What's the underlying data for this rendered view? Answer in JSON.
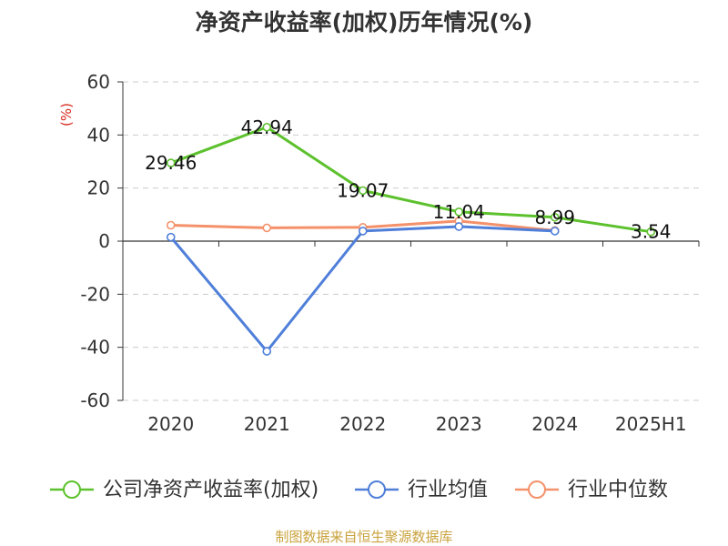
{
  "chart_data": {
    "type": "line",
    "title": "净资产收益率(加权)历年情况(%)",
    "ylabel": "(%)",
    "xlabel": "",
    "categories": [
      "2020",
      "2021",
      "2022",
      "2023",
      "2024",
      "2025H1"
    ],
    "ylim": [
      -60,
      60
    ],
    "yticks": [
      60,
      40,
      20,
      0,
      -20,
      -40,
      -60
    ],
    "grid": true,
    "legend_position": "bottom",
    "series": [
      {
        "name": "公司净资产收益率(加权)",
        "color": "#5cc12d",
        "values": [
          29.46,
          42.94,
          19.07,
          11.04,
          8.99,
          3.54
        ],
        "labels": [
          "29.46",
          "42.94",
          "19.07",
          "11.04",
          "8.99",
          "3.54"
        ]
      },
      {
        "name": "行业均值",
        "color": "#4f7fd9",
        "values": [
          1.5,
          -41.5,
          3.8,
          5.5,
          3.8,
          null
        ]
      },
      {
        "name": "行业中位数",
        "color": "#f4916a",
        "values": [
          6.0,
          5.0,
          5.2,
          7.6,
          4.0,
          null
        ]
      }
    ]
  },
  "source": "制图数据来自恒生聚源数据库",
  "colors": {
    "title": "#333333",
    "ylabel": "#d9281c",
    "source": "#c9a23c",
    "grid": "#cccccc",
    "axis": "#333333"
  }
}
